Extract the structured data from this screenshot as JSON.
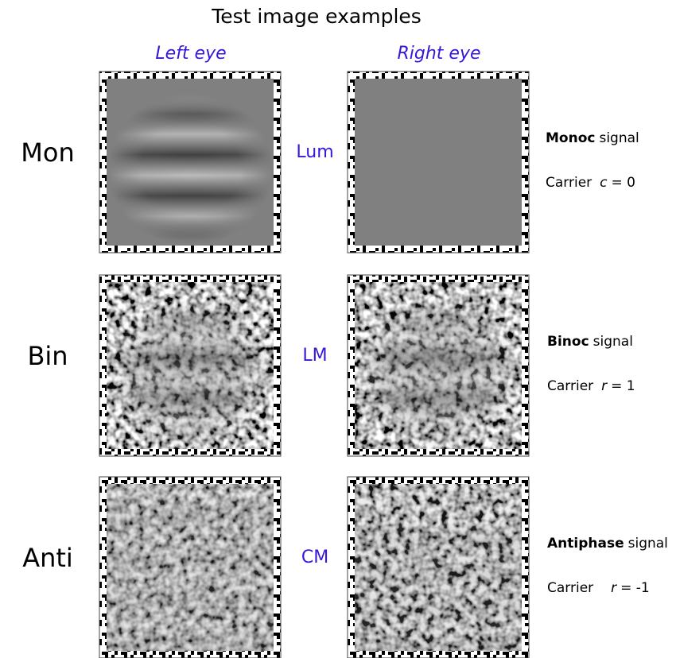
{
  "header": {
    "title": "Test image examples",
    "columns": [
      "Left eye",
      "Right eye"
    ]
  },
  "rows": [
    {
      "label": "Mon",
      "modulation": "Lum",
      "signal": {
        "bold": "Monoc",
        "rest": "signal"
      },
      "carrier": {
        "text": "Carrier",
        "variable": "c",
        "value": "= 0"
      }
    },
    {
      "label": "Bin",
      "modulation": "LM",
      "signal": {
        "bold": "Binoc",
        "rest": "signal"
      },
      "carrier": {
        "text": "Carrier",
        "variable": "r",
        "value": "= 1"
      }
    },
    {
      "label": "Anti",
      "modulation": "CM",
      "signal": {
        "bold": "Antiphase",
        "rest": "signal"
      },
      "carrier": {
        "text": "Carrier",
        "variable": "r",
        "value": "= -1"
      }
    }
  ]
}
